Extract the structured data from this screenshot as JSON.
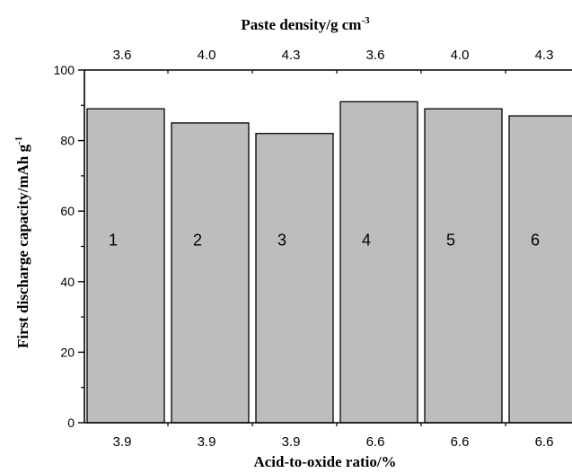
{
  "chart_data": {
    "type": "bar",
    "categories": [
      "1",
      "2",
      "3",
      "4",
      "5",
      "6"
    ],
    "values": [
      89,
      85,
      82,
      91,
      89,
      87
    ],
    "x_bottom_labels": [
      "3.9",
      "3.9",
      "3.9",
      "6.6",
      "6.6",
      "6.6"
    ],
    "x_top_labels": [
      "3.6",
      "4.0",
      "4.3",
      "3.6",
      "4.0",
      "4.3"
    ],
    "xlabel": "Acid-to-oxide ratio/%",
    "xlabel_top": "Paste density/g cm",
    "xlabel_top_superscript": "-3",
    "ylabel": "First discharge capacity/mAh g",
    "ylabel_superscript": "-1",
    "ylim": [
      0,
      100
    ],
    "yticks": [
      "0",
      "20",
      "40",
      "60",
      "80",
      "100"
    ],
    "bar_color": "#bdbdbd",
    "edge_color": "#000000",
    "grid": false
  }
}
